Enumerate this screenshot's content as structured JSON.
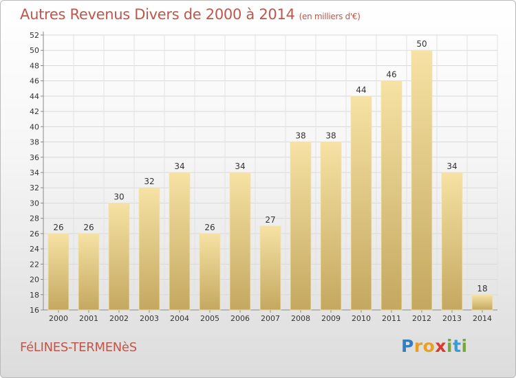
{
  "title": "Autres Revenus Divers de 2000 à 2014",
  "unit": "(en milliers d'€)",
  "commune": "FéLINES-TERMENèS",
  "logo": {
    "letters": [
      "P",
      "r",
      "o",
      "x",
      "i",
      "t",
      "i"
    ],
    "colors": [
      "#2f7fc2",
      "#e8a020",
      "#e8a020",
      "#d93a2b",
      "#7aa63b",
      "#3b9bd6",
      "#7aa63b"
    ]
  },
  "colors": {
    "bar": "#e9cc7c",
    "accent": "#c0564a"
  },
  "chart_data": {
    "type": "bar",
    "title": "Autres Revenus Divers de 2000 à 2014",
    "categories": [
      "2000",
      "2001",
      "2002",
      "2003",
      "2004",
      "2005",
      "2006",
      "2007",
      "2008",
      "2009",
      "2010",
      "2011",
      "2012",
      "2013",
      "2014"
    ],
    "values": [
      26,
      26,
      30,
      32,
      34,
      26,
      34,
      27,
      38,
      38,
      44,
      46,
      50,
      34,
      18
    ],
    "yticks": [
      16,
      18,
      20,
      22,
      24,
      26,
      28,
      30,
      32,
      34,
      36,
      38,
      40,
      42,
      44,
      46,
      48,
      50,
      52
    ],
    "ylim": [
      16,
      52
    ],
    "grid": true,
    "data_labels": true
  }
}
